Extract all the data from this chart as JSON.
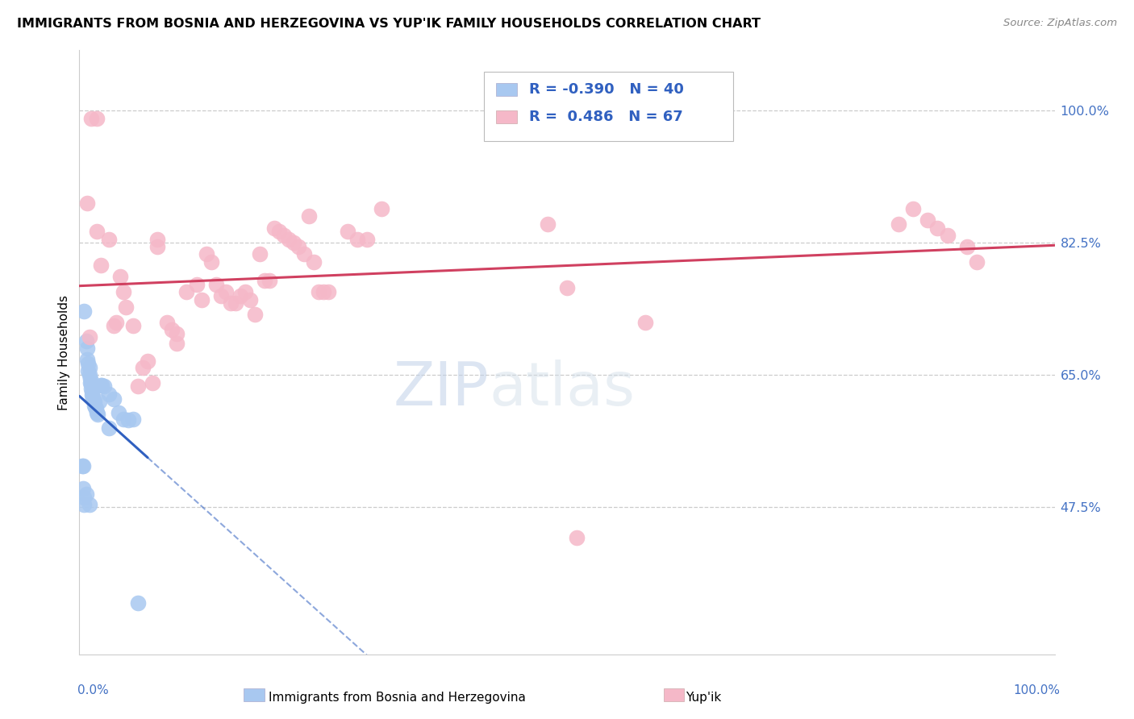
{
  "title": "IMMIGRANTS FROM BOSNIA AND HERZEGOVINA VS YUP'IK FAMILY HOUSEHOLDS CORRELATION CHART",
  "source": "Source: ZipAtlas.com",
  "ylabel": "Family Households",
  "ytick_labels": [
    "47.5%",
    "65.0%",
    "82.5%",
    "100.0%"
  ],
  "ytick_values": [
    0.475,
    0.65,
    0.825,
    1.0
  ],
  "xlim": [
    0.0,
    1.0
  ],
  "ylim": [
    0.28,
    1.08
  ],
  "color_blue": "#A8C8F0",
  "color_pink": "#F5B8C8",
  "color_blue_line": "#3060C0",
  "color_pink_line": "#D04060",
  "watermark_zip": "ZIP",
  "watermark_atlas": "atlas",
  "blue_points": [
    [
      0.005,
      0.735
    ],
    [
      0.007,
      0.695
    ],
    [
      0.008,
      0.685
    ],
    [
      0.008,
      0.67
    ],
    [
      0.009,
      0.665
    ],
    [
      0.009,
      0.655
    ],
    [
      0.01,
      0.66
    ],
    [
      0.01,
      0.65
    ],
    [
      0.011,
      0.645
    ],
    [
      0.011,
      0.64
    ],
    [
      0.012,
      0.638
    ],
    [
      0.012,
      0.632
    ],
    [
      0.013,
      0.628
    ],
    [
      0.013,
      0.623
    ],
    [
      0.014,
      0.618
    ],
    [
      0.015,
      0.615
    ],
    [
      0.015,
      0.61
    ],
    [
      0.016,
      0.608
    ],
    [
      0.017,
      0.605
    ],
    [
      0.018,
      0.6
    ],
    [
      0.019,
      0.598
    ],
    [
      0.02,
      0.615
    ],
    [
      0.022,
      0.636
    ],
    [
      0.023,
      0.636
    ],
    [
      0.025,
      0.635
    ],
    [
      0.03,
      0.625
    ],
    [
      0.035,
      0.618
    ],
    [
      0.04,
      0.6
    ],
    [
      0.045,
      0.592
    ],
    [
      0.05,
      0.59
    ],
    [
      0.003,
      0.53
    ],
    [
      0.004,
      0.5
    ],
    [
      0.005,
      0.488
    ],
    [
      0.005,
      0.478
    ],
    [
      0.007,
      0.492
    ],
    [
      0.01,
      0.478
    ],
    [
      0.06,
      0.348
    ],
    [
      0.03,
      0.58
    ],
    [
      0.004,
      0.53
    ],
    [
      0.055,
      0.592
    ]
  ],
  "pink_points": [
    [
      0.012,
      0.99
    ],
    [
      0.018,
      0.99
    ],
    [
      0.008,
      0.878
    ],
    [
      0.01,
      0.7
    ],
    [
      0.018,
      0.84
    ],
    [
      0.022,
      0.795
    ],
    [
      0.03,
      0.83
    ],
    [
      0.035,
      0.715
    ],
    [
      0.038,
      0.72
    ],
    [
      0.042,
      0.78
    ],
    [
      0.045,
      0.76
    ],
    [
      0.048,
      0.74
    ],
    [
      0.055,
      0.715
    ],
    [
      0.06,
      0.635
    ],
    [
      0.065,
      0.66
    ],
    [
      0.07,
      0.668
    ],
    [
      0.075,
      0.64
    ],
    [
      0.08,
      0.83
    ],
    [
      0.08,
      0.82
    ],
    [
      0.09,
      0.72
    ],
    [
      0.095,
      0.71
    ],
    [
      0.1,
      0.705
    ],
    [
      0.1,
      0.692
    ],
    [
      0.11,
      0.76
    ],
    [
      0.12,
      0.77
    ],
    [
      0.125,
      0.75
    ],
    [
      0.13,
      0.81
    ],
    [
      0.135,
      0.8
    ],
    [
      0.14,
      0.77
    ],
    [
      0.145,
      0.755
    ],
    [
      0.15,
      0.76
    ],
    [
      0.155,
      0.745
    ],
    [
      0.16,
      0.745
    ],
    [
      0.165,
      0.755
    ],
    [
      0.17,
      0.76
    ],
    [
      0.175,
      0.75
    ],
    [
      0.18,
      0.73
    ],
    [
      0.185,
      0.81
    ],
    [
      0.19,
      0.775
    ],
    [
      0.195,
      0.775
    ],
    [
      0.2,
      0.845
    ],
    [
      0.205,
      0.84
    ],
    [
      0.21,
      0.835
    ],
    [
      0.215,
      0.83
    ],
    [
      0.22,
      0.825
    ],
    [
      0.225,
      0.82
    ],
    [
      0.23,
      0.81
    ],
    [
      0.235,
      0.86
    ],
    [
      0.24,
      0.8
    ],
    [
      0.245,
      0.76
    ],
    [
      0.25,
      0.76
    ],
    [
      0.255,
      0.76
    ],
    [
      0.275,
      0.84
    ],
    [
      0.285,
      0.83
    ],
    [
      0.295,
      0.83
    ],
    [
      0.31,
      0.87
    ],
    [
      0.48,
      0.85
    ],
    [
      0.5,
      0.765
    ],
    [
      0.51,
      0.435
    ],
    [
      0.58,
      0.72
    ],
    [
      0.84,
      0.85
    ],
    [
      0.855,
      0.87
    ],
    [
      0.87,
      0.855
    ],
    [
      0.88,
      0.845
    ],
    [
      0.89,
      0.835
    ],
    [
      0.91,
      0.82
    ],
    [
      0.92,
      0.8
    ]
  ]
}
